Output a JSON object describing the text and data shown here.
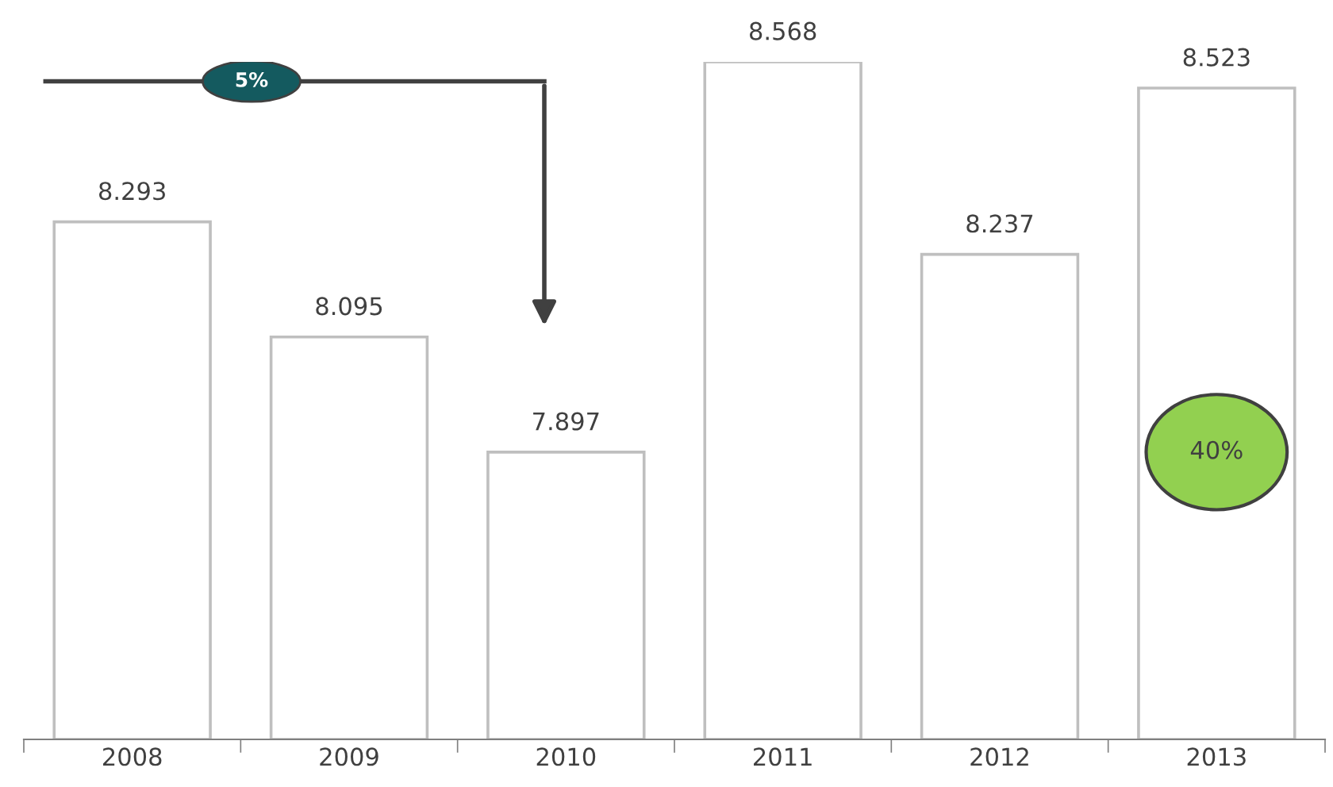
{
  "chart_data": {
    "type": "bar",
    "categories": [
      "2008",
      "2009",
      "2010",
      "2011",
      "2012",
      "2013"
    ],
    "values": [
      8.293,
      8.095,
      7.897,
      8.568,
      8.237,
      8.523
    ],
    "color": "#ffffff",
    "ylim": [
      7.403,
      8.568
    ],
    "data_labels": true,
    "grid": false,
    "legend": false,
    "tick_labels": "x",
    "annotations": [
      "5%",
      "40%"
    ]
  }
}
